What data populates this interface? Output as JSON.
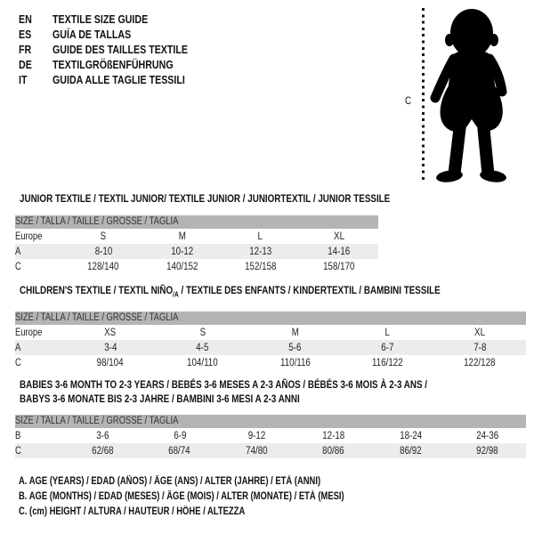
{
  "colors": {
    "background": "#ffffff",
    "text": "#111111",
    "table_header_bg": "#b4b4b4",
    "row_shaded_bg": "#ececec",
    "silhouette": "#000000"
  },
  "languages": [
    {
      "code": "EN",
      "text": "TEXTILE SIZE GUIDE"
    },
    {
      "code": "ES",
      "text": "GUÍA DE TALLAS"
    },
    {
      "code": "FR",
      "text": "GUIDE DES TAILLES TEXTILE"
    },
    {
      "code": "DE",
      "text": "TEXTILGRÖßENFÜHRUNG"
    },
    {
      "code": "IT",
      "text": "GUIDA ALLE TAGLIE TESSILI"
    }
  ],
  "figure": {
    "measure_label": "C",
    "image": "toddler-silhouette"
  },
  "tables": [
    {
      "title_lines": [
        [
          {
            "t": "JUNIOR TEXTILE / TEXTIL JUNIOR/ TEXTILE JUNIOR / JUNIORTEXTIL / JUNIOR TESSILE"
          }
        ]
      ],
      "size_header": "SIZE / TALLA / TAILLE / GRÖSSE / TAGLIA",
      "rows": [
        {
          "label": "Europe",
          "shaded": false,
          "cells": [
            "S",
            "M",
            "L",
            "XL"
          ]
        },
        {
          "label": "A",
          "shaded": true,
          "cells": [
            "8-10",
            "10-12",
            "12-13",
            "14-16"
          ]
        },
        {
          "label": "C",
          "shaded": false,
          "cells": [
            "128/140",
            "140/152",
            "152/158",
            "158/170"
          ]
        }
      ]
    },
    {
      "title_lines": [
        [
          {
            "t": "CHILDREN'S TEXTILE / TEXTIL NIÑO"
          },
          {
            "t": "/A",
            "sub": true
          },
          {
            "t": " / TEXTILE DES ENFANTS / KINDERTEXTIL / BAMBINI TESSILE"
          }
        ]
      ],
      "size_header": "SIZE / TALLA / TAILLE / GRÖSSE / TAGLIA",
      "rows": [
        {
          "label": "Europe",
          "shaded": false,
          "cells": [
            "XS",
            "S",
            "M",
            "L",
            "XL"
          ]
        },
        {
          "label": "A",
          "shaded": true,
          "cells": [
            "3-4",
            "4-5",
            "5-6",
            "6-7",
            "7-8"
          ]
        },
        {
          "label": "C",
          "shaded": false,
          "cells": [
            "98/104",
            "104/110",
            "110/116",
            "116/122",
            "122/128"
          ]
        }
      ]
    },
    {
      "title_lines": [
        [
          {
            "t": "BABIES 3-6 MONTH TO 2-3 YEARS / BEBÉS 3-6 MESES A 2-3 AÑOS / BÉBÉS 3-6 MOIS À 2-3 ANS /"
          }
        ],
        [
          {
            "t": "BABYS 3-6 MONATE BIS 2-3 JAHRE / BAMBINI 3-6 MESI A 2-3 ANNI"
          }
        ]
      ],
      "size_header": "SIZE / TALLA / TAILLE / GRÖSSE / TAGLIA",
      "rows": [
        {
          "label": "B",
          "shaded": false,
          "cells": [
            "3-6",
            "6-9",
            "9-12",
            "12-18",
            "18-24",
            "24-36"
          ]
        },
        {
          "label": "C",
          "shaded": true,
          "cells": [
            "62/68",
            "68/74",
            "74/80",
            "80/86",
            "86/92",
            "92/98"
          ]
        }
      ]
    }
  ],
  "footnotes": [
    "A. AGE (YEARS) / EDAD (AÑOS) / ÂGE (ANS) / ALTER (JAHRE) / ETÀ (ANNI)",
    "B. AGE (MONTHS) / EDAD (MESES) / ÂGE (MOIS) / ALTER (MONATE) / ETÀ (MESI)",
    "C. (cm) HEIGHT / ALTURA / HAUTEUR / HÖHE / ALTEZZA"
  ]
}
